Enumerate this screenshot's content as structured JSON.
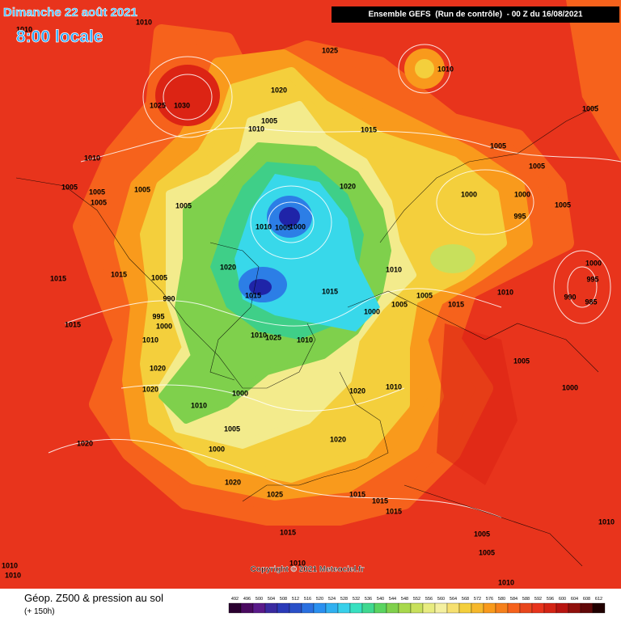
{
  "header": {
    "date": "Dimanche 22 août 2021",
    "time": "8:00 locale",
    "run": "Ensemble GEFS  (Run de contrôle)  - 00 Z du 16/08/2021"
  },
  "footer": {
    "copyright": "Copyright © 2021 Meteociel.fr",
    "product": "Géop. Z500 & pression au sol",
    "lead_time": "(+ 150h)"
  },
  "isobar_labels": [
    1010,
    1010,
    1025,
    1010,
    1025,
    1030,
    1020,
    1005,
    1010,
    1015,
    1005,
    1010,
    1005,
    1005,
    1005,
    1005,
    1005,
    1005,
    1020,
    1000,
    1000,
    1005,
    995,
    1005,
    1010,
    1005,
    1000,
    1020,
    1015,
    1015,
    1005,
    1010,
    1000,
    995,
    990,
    1015,
    1015,
    1005,
    1010,
    990,
    985,
    1005,
    1015,
    995,
    1000,
    1000,
    1015,
    1010,
    1010,
    1025,
    1010,
    1005,
    1020,
    1000,
    1020,
    1000,
    1020,
    1010,
    1010,
    1005,
    1020,
    1000,
    1020,
    1020,
    1025,
    1015,
    1015,
    1015,
    1010,
    1015,
    1005,
    1005,
    1010,
    1010,
    1010,
    1010
  ],
  "colorbar": {
    "ticks": [
      492,
      496,
      500,
      504,
      508,
      512,
      516,
      520,
      524,
      528,
      532,
      536,
      540,
      544,
      548,
      552,
      556,
      560,
      564,
      568,
      572,
      576,
      580,
      584,
      588,
      592,
      596,
      600,
      604,
      608,
      612
    ],
    "colors": [
      "#2a0030",
      "#4a0a60",
      "#5a1a8a",
      "#3a2aa0",
      "#2a3ab8",
      "#2a50c8",
      "#2a70e0",
      "#2a90f0",
      "#30b0f0",
      "#38d0ea",
      "#38e0c0",
      "#40d890",
      "#5ad460",
      "#80d04c",
      "#a8d84c",
      "#c8e05c",
      "#e8ec80",
      "#f4f0a0",
      "#f6e070",
      "#f4cf3c",
      "#f6b82c",
      "#f99a1c",
      "#f6801c",
      "#f6621c",
      "#e8461c",
      "#e8341c",
      "#d42414",
      "#b81410",
      "#90100c",
      "#600808",
      "#200000"
    ]
  }
}
